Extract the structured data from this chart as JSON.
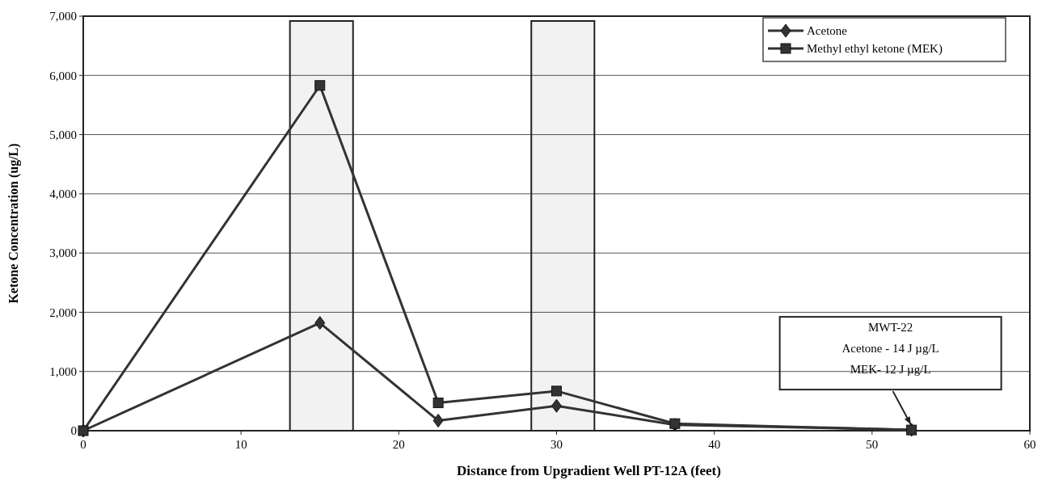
{
  "chart_data": {
    "type": "line",
    "xlabel": "Distance from Upgradient Well PT-12A (feet)",
    "ylabel": "Ketone Concentration (ug/L)",
    "x": [
      0,
      15,
      22.5,
      30,
      37.5,
      52.5
    ],
    "series": [
      {
        "name": "Acetone",
        "color": "#333333",
        "marker": "diamond",
        "values": [
          0,
          1820,
          170,
          420,
          100,
          14
        ]
      },
      {
        "name": "Methyl ethyl ketone (MEK)",
        "color": "#333333",
        "marker": "square",
        "values": [
          0,
          5830,
          470,
          670,
          120,
          12
        ]
      }
    ],
    "xlim": [
      0,
      60
    ],
    "xticks": [
      0,
      10,
      20,
      30,
      40,
      50,
      60
    ],
    "ylim": [
      0,
      7000
    ],
    "yticks": [
      {
        "value": 0,
        "label": "0"
      },
      {
        "value": 1000,
        "label": "1,000"
      },
      {
        "value": 2000,
        "label": "2,000"
      },
      {
        "value": 3000,
        "label": "3,000"
      },
      {
        "value": 4000,
        "label": "4,000"
      },
      {
        "value": 5000,
        "label": "5,000"
      },
      {
        "value": 6000,
        "label": "6,000"
      },
      {
        "value": 7000,
        "label": "7,000"
      }
    ],
    "grid": "y",
    "legend": "top right",
    "line_style": "solid",
    "bands": [
      {
        "axis": "x",
        "from": 13.1,
        "to": 17.1,
        "color": "#222222"
      },
      {
        "axis": "x",
        "from": 28.4,
        "to": 32.4,
        "color": "#222222"
      }
    ],
    "annotations": [
      {
        "text": "MWT-22\nAcetone - 14 J µg/L\nMEK- 12 J µg/L",
        "x": 52.5,
        "y": 12
      }
    ]
  }
}
